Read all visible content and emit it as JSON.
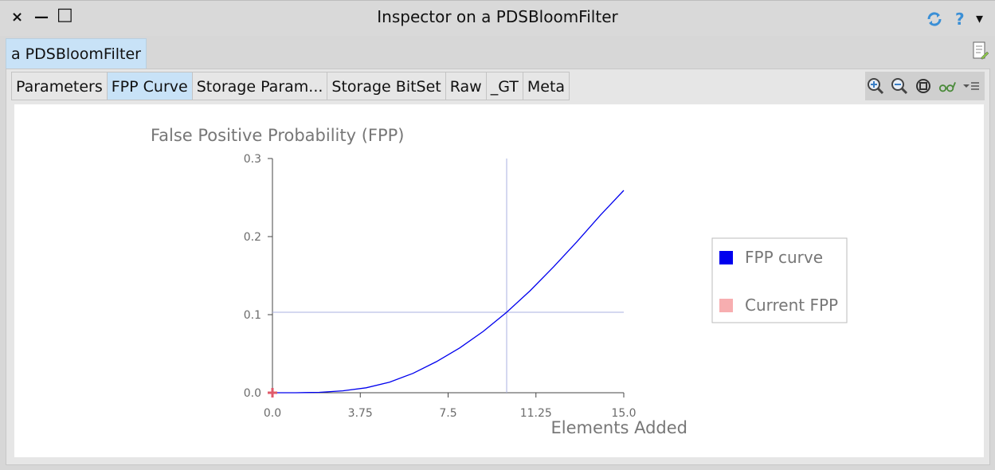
{
  "window": {
    "title": "Inspector on a PDSBloomFilter",
    "close_glyph": "×",
    "minimize_glyph": "—",
    "maximize_glyph": "□",
    "refresh_icon": "refresh-icon",
    "help_glyph": "?",
    "menu_glyph": "▾"
  },
  "object_tab": {
    "label": "a PDSBloomFilter"
  },
  "view_tabs": [
    {
      "label": "Parameters",
      "active": false
    },
    {
      "label": "FPP Curve",
      "active": true
    },
    {
      "label": "Storage Param...",
      "active": false
    },
    {
      "label": "Storage BitSet",
      "active": false
    },
    {
      "label": "Raw",
      "active": false
    },
    {
      "label": "_GT",
      "active": false
    },
    {
      "label": "Meta",
      "active": false
    }
  ],
  "toolbar_icons": [
    "zoom-in-icon",
    "zoom-out-icon",
    "zoom-fit-icon",
    "glasses-icon",
    "menu-icon"
  ],
  "colors": {
    "accent": "#c8e2f7",
    "curve": "#0000ee",
    "current_fpp": "#f7aeb0",
    "crosshair": "#aab0e2",
    "axis_text": "#6b6b6b"
  },
  "chart_data": {
    "type": "line",
    "title": "False Positive Probability (FPP)",
    "xlabel": "Elements Added",
    "ylabel": "",
    "x_ticks": [
      "0.0",
      "3.75",
      "7.5",
      "11.25",
      "15.0"
    ],
    "y_ticks": [
      "0.0",
      "0.1",
      "0.2",
      "0.3"
    ],
    "xlim": [
      0,
      15
    ],
    "ylim": [
      0,
      0.3
    ],
    "series": [
      {
        "name": "FPP curve",
        "x": [
          0,
          1,
          2,
          3,
          4,
          5,
          6,
          7,
          8,
          9,
          10,
          11,
          12,
          13,
          14,
          15
        ],
        "y": [
          0.0,
          0.0,
          0.0005,
          0.0025,
          0.0063,
          0.0136,
          0.0248,
          0.0398,
          0.0574,
          0.0786,
          0.1031,
          0.1306,
          0.1611,
          0.1935,
          0.2273,
          0.2592
        ]
      }
    ],
    "current_fpp": {
      "name": "Current FPP",
      "x": 10,
      "y": 0.103
    },
    "origin_marker": {
      "x": 0,
      "y": 0
    },
    "legend": [
      "FPP curve",
      "Current FPP"
    ],
    "legend_position": "right",
    "grid": false
  }
}
